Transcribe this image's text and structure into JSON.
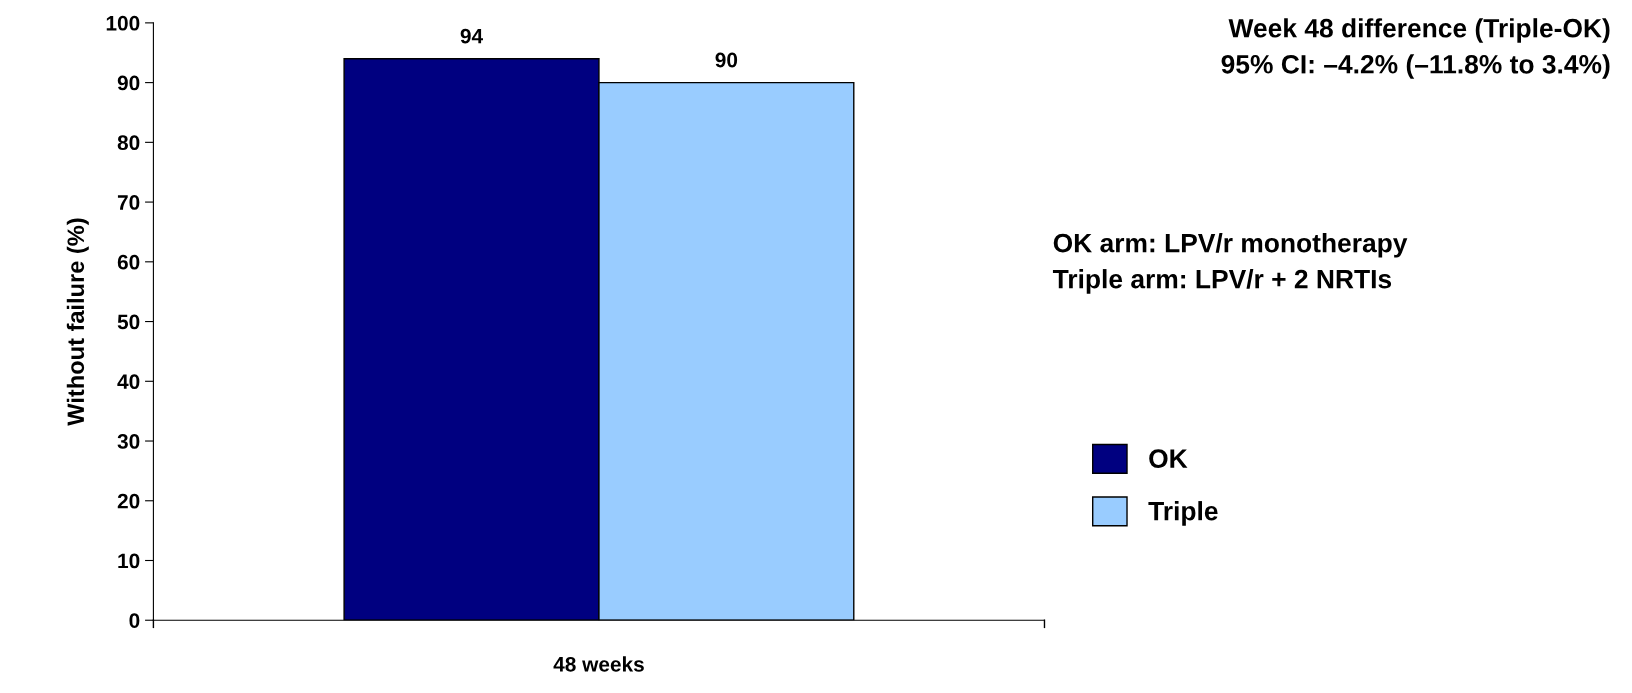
{
  "chart_data": {
    "type": "bar",
    "ylabel": "Without failure (%)",
    "categories": [
      "48 weeks"
    ],
    "series": [
      {
        "name": "OK",
        "color": "#000080",
        "values": [
          94
        ]
      },
      {
        "name": "Triple",
        "color": "#99ccff",
        "values": [
          90
        ]
      }
    ],
    "ylim": [
      0,
      100
    ],
    "yticks": [
      0,
      10,
      20,
      30,
      40,
      50,
      60,
      70,
      80,
      90,
      100
    ],
    "grid": false,
    "legend": "right",
    "data_labels": true,
    "annotations": [
      "Week 48 difference (Triple-OK)\n95% CI: –4.2% (–11.8% to 3.4%)",
      "OK arm: LPV/r monotherapy\nTriple arm: LPV/r + 2 NRTIs"
    ]
  }
}
